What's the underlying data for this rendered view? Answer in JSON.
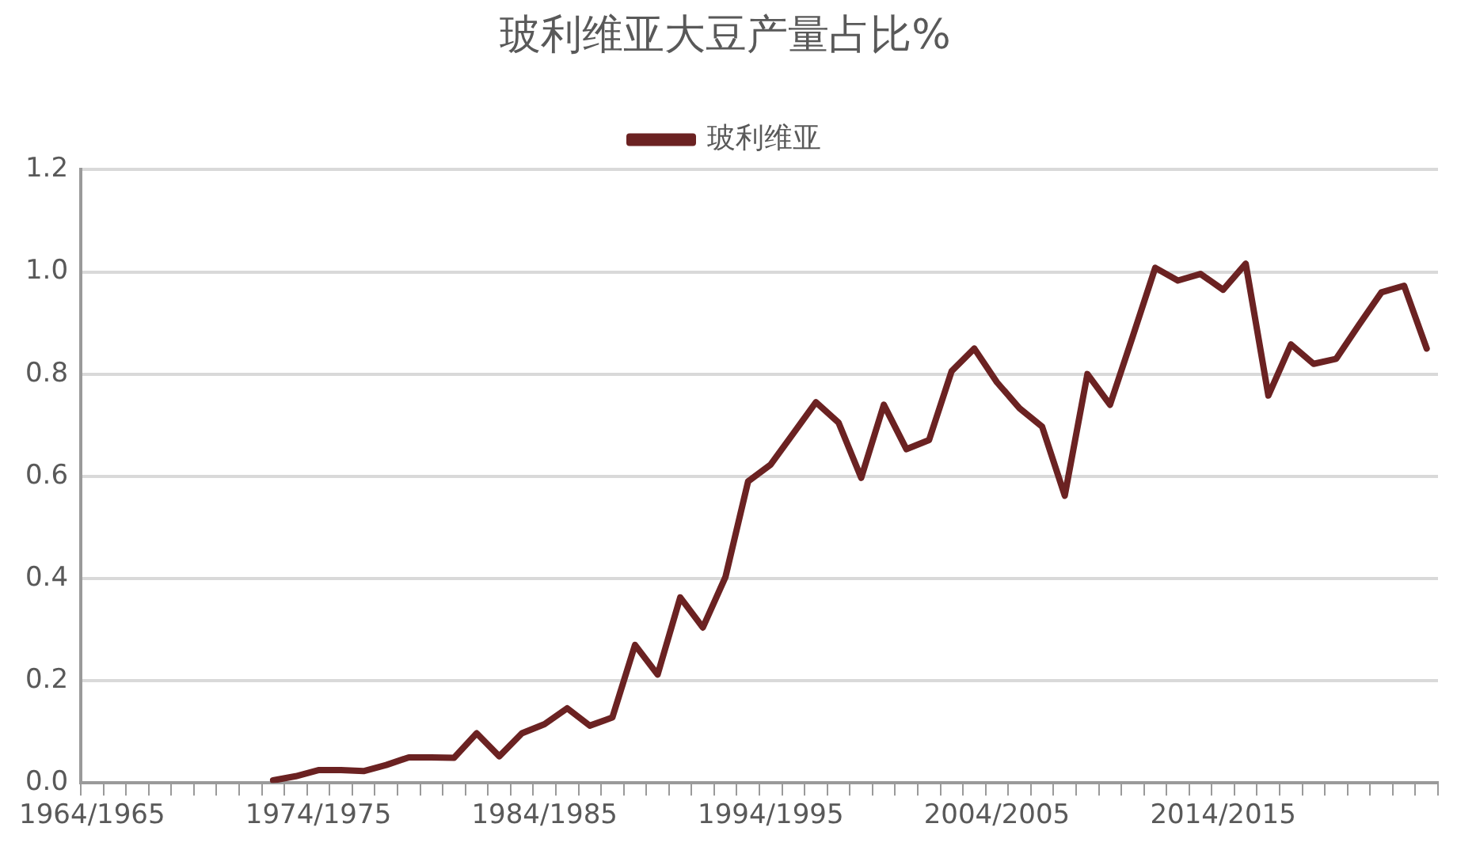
{
  "chart_data": {
    "type": "line",
    "title": "玻利维亚大豆产量占比%",
    "categories": [
      "1964/1965",
      null,
      null,
      null,
      null,
      null,
      null,
      null,
      null,
      null,
      "1974/1975",
      null,
      null,
      null,
      null,
      null,
      null,
      null,
      null,
      null,
      "1984/1985",
      null,
      null,
      null,
      null,
      null,
      null,
      null,
      null,
      null,
      "1994/1995",
      null,
      null,
      null,
      null,
      null,
      null,
      null,
      null,
      null,
      "2004/2005",
      null,
      null,
      null,
      null,
      null,
      null,
      null,
      null,
      null,
      "2014/2015",
      null,
      null,
      null,
      null,
      null,
      null,
      null,
      null,
      null
    ],
    "series": [
      {
        "name": "玻利维亚",
        "color": "#6b2222",
        "values": [
          null,
          null,
          null,
          null,
          null,
          null,
          null,
          null,
          0.005,
          0.013,
          0.025,
          0.025,
          0.023,
          0.035,
          0.05,
          0.05,
          0.049,
          0.097,
          0.052,
          0.097,
          0.115,
          0.146,
          0.112,
          0.128,
          0.27,
          0.212,
          0.363,
          0.304,
          0.403,
          0.59,
          0.623,
          0.684,
          0.745,
          0.705,
          0.597,
          0.74,
          0.653,
          0.671,
          0.806,
          0.85,
          0.784,
          0.733,
          0.697,
          0.562,
          0.8,
          0.74,
          0.873,
          1.008,
          0.983,
          0.996,
          0.965,
          1.016,
          0.758,
          0.858,
          0.82,
          0.83,
          0.896,
          0.96,
          0.973,
          0.85
        ]
      }
    ],
    "ylim": [
      0,
      1.2
    ],
    "yticks": [
      {
        "value": 0,
        "label": "0.0"
      },
      {
        "value": 0.2,
        "label": "0.2"
      },
      {
        "value": 0.4,
        "label": "0.4"
      },
      {
        "value": 0.6,
        "label": "0.6"
      },
      {
        "value": 0.8,
        "label": "0.8"
      },
      {
        "value": 1,
        "label": "1.0"
      },
      {
        "value": 1.2,
        "label": "1.2"
      }
    ],
    "grid": "y",
    "legend": "top",
    "marker": "none",
    "line_style": "solid"
  }
}
